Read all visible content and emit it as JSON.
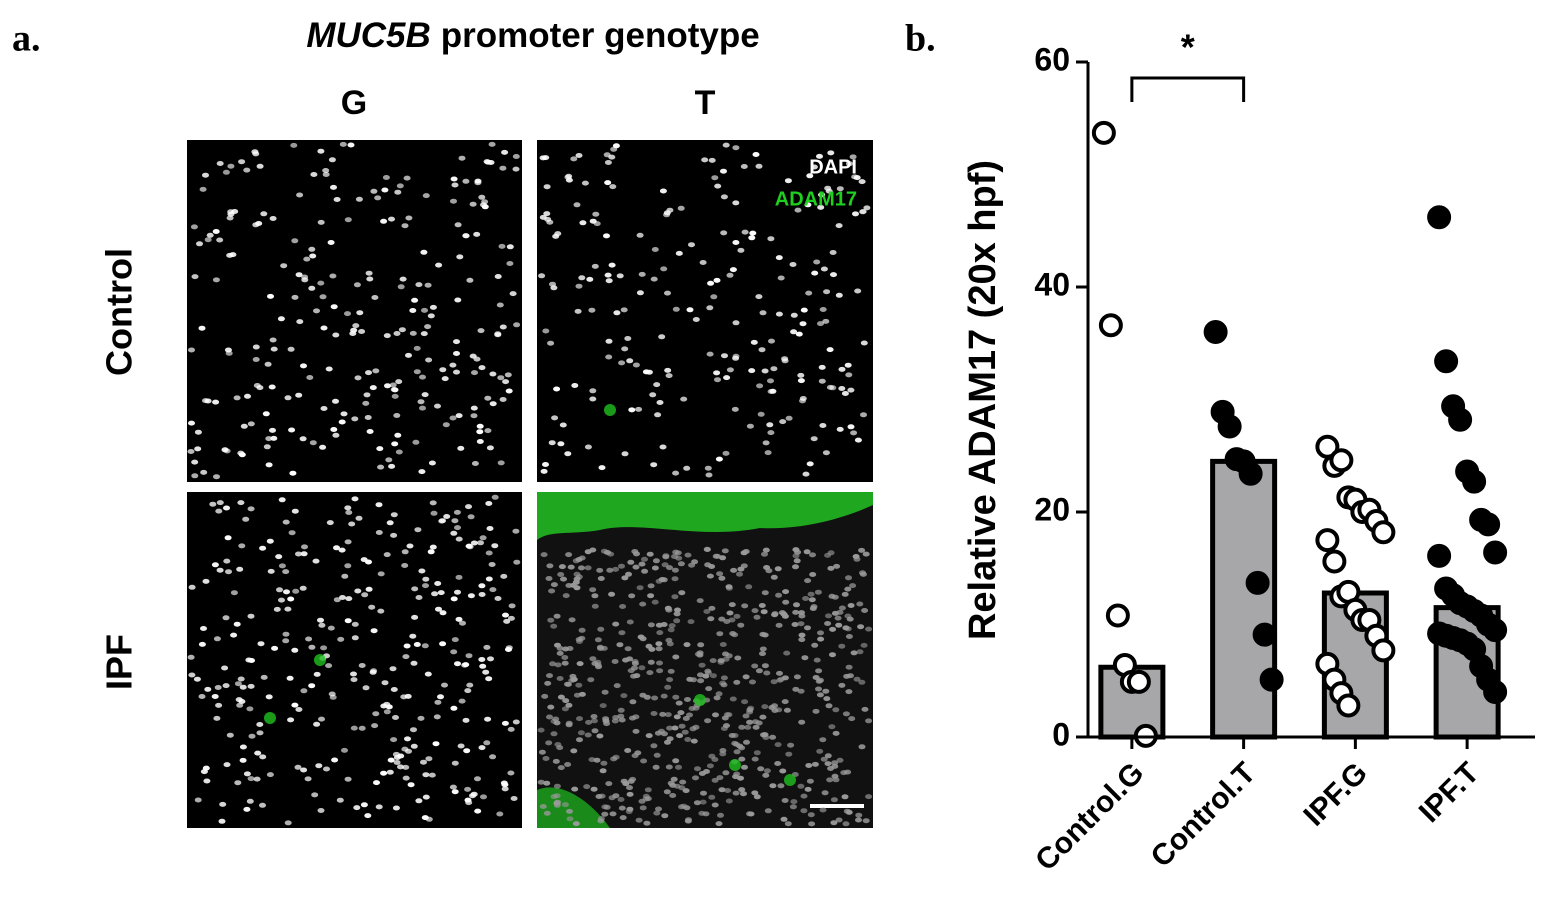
{
  "panel_a": {
    "label": "a.",
    "title_italic": "MUC5B",
    "title_rest": "promoter genotype",
    "columns": [
      "G",
      "T"
    ],
    "rows": [
      "Control",
      "IPF"
    ],
    "channels": [
      "DAPI",
      "ADAM17"
    ]
  },
  "chart_data": {
    "type": "bar",
    "label": "b.",
    "y_label": "Relative ADAM17 (20x hpf)",
    "annotation": "*",
    "categories": [
      "Control.G",
      "Control.T",
      "IPF.G",
      "IPF.T"
    ],
    "values": [
      6.2,
      24.5,
      12.8,
      11.5
    ],
    "color": "#a7a7aa",
    "points": [
      [
        53.7,
        36.6,
        10.8,
        6.4,
        4.9,
        4.9,
        0.1
      ],
      [
        36.0,
        28.9,
        27.6,
        24.7,
        24.5,
        23.4,
        13.7,
        9.1,
        5.1
      ],
      [
        25.8,
        24.1,
        24.6,
        21.3,
        21.1,
        20.0,
        20.2,
        19.2,
        18.2,
        17.5,
        15.6,
        12.5,
        12.9,
        11.3,
        10.4,
        10.4,
        9.0,
        7.7,
        6.5,
        5.1,
        3.9,
        2.8
      ],
      [
        46.2,
        33.4,
        29.4,
        28.2,
        23.6,
        22.7,
        19.3,
        18.9,
        16.4,
        16.1,
        13.2,
        12.6,
        11.9,
        11.6,
        11.2,
        10.8,
        10.0,
        9.5,
        9.2,
        9.0,
        8.8,
        8.6,
        8.3,
        7.8,
        6.3,
        5.1,
        4.0
      ]
    ],
    "point_fill": [
      "#ffffff",
      "#000000",
      "#ffffff",
      "#000000"
    ],
    "ylim": [
      0,
      60
    ],
    "yticks": [
      0,
      20,
      40,
      60
    ],
    "grid": false
  }
}
